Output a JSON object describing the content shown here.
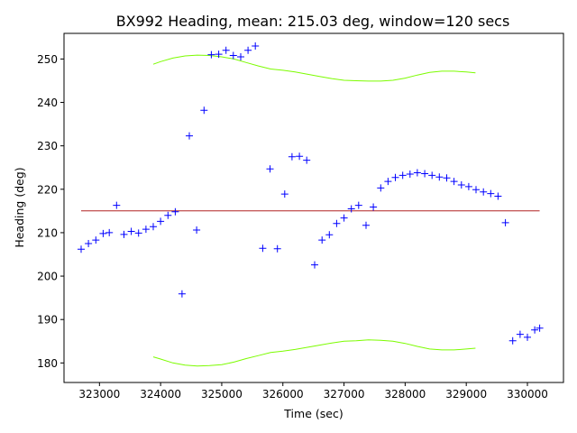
{
  "chart_data": {
    "type": "scatter",
    "title": "BX992 Heading, mean: 215.03 deg, window=120 secs",
    "xlabel": "Time (sec)",
    "ylabel": "Heading (deg)",
    "xlim": [
      322420,
      330590
    ],
    "ylim": [
      175.5,
      255.9
    ],
    "xticks": [
      323000,
      324000,
      325000,
      326000,
      327000,
      328000,
      329000,
      330000
    ],
    "yticks": [
      180,
      190,
      200,
      210,
      220,
      230,
      240,
      250
    ],
    "grid": false,
    "colors": {
      "points": "#0000ff",
      "mean_line": "#b22222",
      "band": "#7cfc00"
    },
    "mean": {
      "value": 215.03,
      "x": [
        322700,
        330200
      ]
    },
    "points": [
      [
        322700,
        206.2
      ],
      [
        322820,
        207.5
      ],
      [
        322940,
        208.3
      ],
      [
        323060,
        209.8
      ],
      [
        323160,
        210.0
      ],
      [
        323280,
        216.3
      ],
      [
        323400,
        209.6
      ],
      [
        323520,
        210.3
      ],
      [
        323640,
        209.9
      ],
      [
        323760,
        210.8
      ],
      [
        323880,
        211.4
      ],
      [
        324000,
        212.6
      ],
      [
        324120,
        214.0
      ],
      [
        324240,
        214.8
      ],
      [
        324350,
        195.9
      ],
      [
        324470,
        232.3
      ],
      [
        324590,
        210.6
      ],
      [
        324710,
        238.2
      ],
      [
        324830,
        251.0
      ],
      [
        324950,
        251.1
      ],
      [
        325070,
        252.0
      ],
      [
        325190,
        250.8
      ],
      [
        325310,
        250.5
      ],
      [
        325430,
        252.0
      ],
      [
        325550,
        253.0
      ],
      [
        325670,
        206.4
      ],
      [
        325790,
        224.7
      ],
      [
        325910,
        206.3
      ],
      [
        326030,
        218.9
      ],
      [
        326150,
        227.5
      ],
      [
        326270,
        227.6
      ],
      [
        326390,
        226.7
      ],
      [
        326520,
        202.6
      ],
      [
        326640,
        208.3
      ],
      [
        326760,
        209.5
      ],
      [
        326880,
        212.1
      ],
      [
        327000,
        213.4
      ],
      [
        327120,
        215.5
      ],
      [
        327240,
        216.3
      ],
      [
        327360,
        211.7
      ],
      [
        327480,
        215.9
      ],
      [
        327600,
        220.3
      ],
      [
        327720,
        221.8
      ],
      [
        327840,
        222.7
      ],
      [
        327960,
        223.2
      ],
      [
        328080,
        223.5
      ],
      [
        328200,
        223.8
      ],
      [
        328320,
        223.6
      ],
      [
        328440,
        223.2
      ],
      [
        328560,
        222.8
      ],
      [
        328680,
        222.6
      ],
      [
        328800,
        221.8
      ],
      [
        328920,
        221.0
      ],
      [
        329040,
        220.6
      ],
      [
        329160,
        219.9
      ],
      [
        329280,
        219.4
      ],
      [
        329400,
        219.0
      ],
      [
        329520,
        218.4
      ],
      [
        329640,
        212.3
      ],
      [
        329760,
        185.1
      ],
      [
        329880,
        186.6
      ],
      [
        330000,
        185.9
      ],
      [
        330120,
        187.6
      ],
      [
        330200,
        188.0
      ]
    ],
    "upper_band": [
      [
        323880,
        248.8
      ],
      [
        324000,
        249.4
      ],
      [
        324200,
        250.2
      ],
      [
        324400,
        250.7
      ],
      [
        324600,
        250.9
      ],
      [
        324800,
        250.8
      ],
      [
        325000,
        250.5
      ],
      [
        325200,
        250.0
      ],
      [
        325400,
        249.2
      ],
      [
        325600,
        248.4
      ],
      [
        325800,
        247.7
      ],
      [
        326000,
        247.4
      ],
      [
        326200,
        247.0
      ],
      [
        326400,
        246.5
      ],
      [
        326600,
        246.0
      ],
      [
        326800,
        245.5
      ],
      [
        327000,
        245.1
      ],
      [
        327200,
        245.0
      ],
      [
        327400,
        244.9
      ],
      [
        327600,
        244.9
      ],
      [
        327800,
        245.1
      ],
      [
        328000,
        245.6
      ],
      [
        328200,
        246.3
      ],
      [
        328400,
        246.9
      ],
      [
        328600,
        247.2
      ],
      [
        328800,
        247.2
      ],
      [
        329000,
        247.0
      ],
      [
        329150,
        246.8
      ]
    ],
    "lower_band": [
      [
        323880,
        181.4
      ],
      [
        324000,
        180.9
      ],
      [
        324200,
        180.0
      ],
      [
        324400,
        179.5
      ],
      [
        324600,
        179.3
      ],
      [
        324800,
        179.4
      ],
      [
        325000,
        179.6
      ],
      [
        325200,
        180.2
      ],
      [
        325400,
        181.0
      ],
      [
        325600,
        181.7
      ],
      [
        325800,
        182.4
      ],
      [
        326000,
        182.7
      ],
      [
        326200,
        183.1
      ],
      [
        326400,
        183.6
      ],
      [
        326600,
        184.1
      ],
      [
        326800,
        184.6
      ],
      [
        327000,
        185.0
      ],
      [
        327200,
        185.1
      ],
      [
        327400,
        185.3
      ],
      [
        327600,
        185.2
      ],
      [
        327800,
        185.0
      ],
      [
        328000,
        184.5
      ],
      [
        328200,
        183.8
      ],
      [
        328400,
        183.2
      ],
      [
        328600,
        183.0
      ],
      [
        328800,
        183.0
      ],
      [
        329000,
        183.2
      ],
      [
        329150,
        183.4
      ]
    ]
  }
}
